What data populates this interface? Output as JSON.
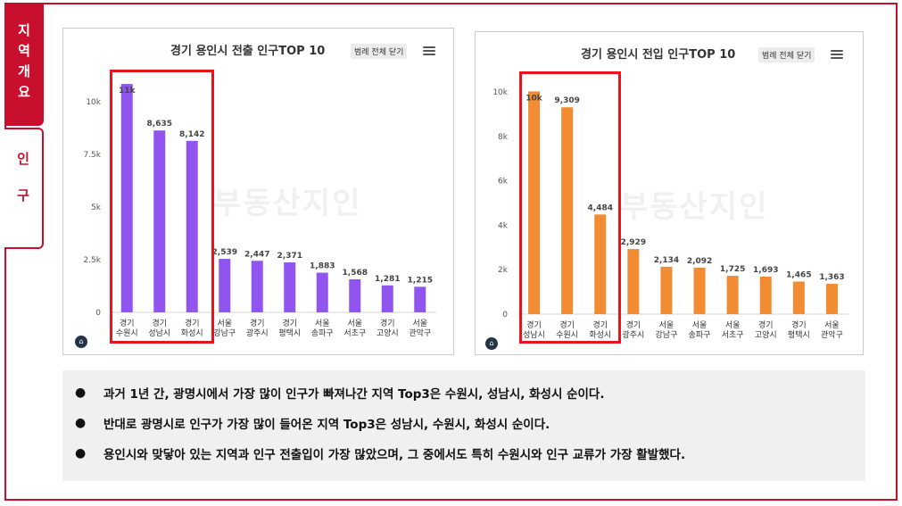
{
  "side_tabs": {
    "active": "지역개요",
    "inactive": "인구"
  },
  "watermark": "부동산지인",
  "colors": {
    "accent": "#c8102e",
    "highlight": "#e8141c",
    "left_bars": "#9155ef",
    "right_bars": "#f28c33"
  },
  "chart_data": [
    {
      "type": "bar",
      "title": "경기 용인시 전출 인구TOP 10",
      "legend_button": "범례 전체 닫기",
      "categories": [
        [
          "경기",
          "수원시"
        ],
        [
          "경기",
          "성남시"
        ],
        [
          "경기",
          "화성시"
        ],
        [
          "서울",
          "강남구"
        ],
        [
          "경기",
          "광주시"
        ],
        [
          "경기",
          "평택시"
        ],
        [
          "서울",
          "송파구"
        ],
        [
          "서울",
          "서초구"
        ],
        [
          "경기",
          "고양시"
        ],
        [
          "서울",
          "관악구"
        ]
      ],
      "values": [
        10842,
        8635,
        8142,
        2539,
        2447,
        2371,
        1883,
        1568,
        1281,
        1215
      ],
      "data_labels": [
        "11k",
        "8,635",
        "8,142",
        "2,539",
        "2,447",
        "2,371",
        "1,883",
        "1,568",
        "1,281",
        "1,215"
      ],
      "ylim": [
        0,
        10000
      ],
      "yticks": [
        0,
        2500,
        5000,
        7500,
        10000
      ],
      "ytick_labels": [
        "0",
        "2.5k",
        "5k",
        "7.5k",
        "10k"
      ],
      "highlighted_top": 3
    },
    {
      "type": "bar",
      "title": "경기 용인시 전입 인구TOP 10",
      "legend_button": "범례 전체 닫기",
      "categories": [
        [
          "경기",
          "성남시"
        ],
        [
          "경기",
          "수원시"
        ],
        [
          "경기",
          "화성시"
        ],
        [
          "경기",
          "광주시"
        ],
        [
          "서울",
          "강남구"
        ],
        [
          "서울",
          "송파구"
        ],
        [
          "서울",
          "서초구"
        ],
        [
          "경기",
          "고양시"
        ],
        [
          "경기",
          "평택시"
        ],
        [
          "서울",
          "관악구"
        ]
      ],
      "values": [
        10025,
        9309,
        4484,
        2929,
        2134,
        2092,
        1725,
        1693,
        1465,
        1363
      ],
      "data_labels": [
        "10k",
        "9,309",
        "4,484",
        "2,929",
        "2,134",
        "2,092",
        "1,725",
        "1,693",
        "1,465",
        "1,363"
      ],
      "ylim": [
        0,
        10000
      ],
      "yticks": [
        0,
        2000,
        4000,
        6000,
        8000,
        10000
      ],
      "ytick_labels": [
        "0",
        "2k",
        "4k",
        "6k",
        "8k",
        "10k"
      ],
      "highlighted_top": 3
    }
  ],
  "notes": [
    "과거 1년 간, 광명시에서 가장 많이 인구가 빠져나간 지역 Top3은 수원시, 성남시, 화성시 순이다.",
    "반대로 광명시로 인구가 가장 많이 들어온 지역 Top3은 성남시, 수원시, 화성시 순이다.",
    "용인시와 맞닿아 있는 지역과 인구 전출입이 가장 많았으며, 그 중에서도 특히 수원시와 인구 교류가 가장 활발했다."
  ],
  "bullet": "●"
}
